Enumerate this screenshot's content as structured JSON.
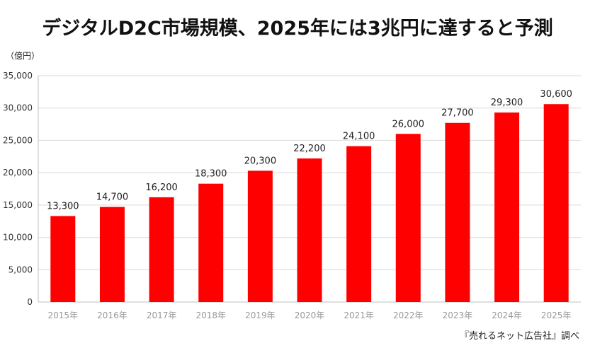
{
  "title": "デジタルD2C市場規模、2025年には3兆円に達すると予測",
  "unit_label": "（億円）",
  "source": "『売れるネット広告社』調べ",
  "chart_data": {
    "type": "bar",
    "title": "デジタルD2C市場規模、2025年には3兆円に達すると予測",
    "xlabel": "",
    "ylabel": "（億円）",
    "categories": [
      "2015年",
      "2016年",
      "2017年",
      "2018年",
      "2019年",
      "2020年",
      "2021年",
      "2022年",
      "2023年",
      "2024年",
      "2025年"
    ],
    "values": [
      13300,
      14700,
      16200,
      18300,
      20300,
      22200,
      24100,
      26000,
      27700,
      29300,
      30600
    ],
    "value_labels": [
      "13,300",
      "14,700",
      "16,200",
      "18,300",
      "20,300",
      "22,200",
      "24,100",
      "26,000",
      "27,700",
      "29,300",
      "30,600"
    ],
    "ylim": [
      0,
      35000
    ],
    "yticks": [
      0,
      5000,
      10000,
      15000,
      20000,
      25000,
      30000,
      35000
    ],
    "ytick_labels": [
      "0",
      "5,000",
      "10,000",
      "15,000",
      "20,000",
      "25,000",
      "30,000",
      "35,000"
    ],
    "grid": true,
    "legend": "none",
    "bar_color": "#ff0000",
    "grid_color": "#d9d9d9"
  }
}
